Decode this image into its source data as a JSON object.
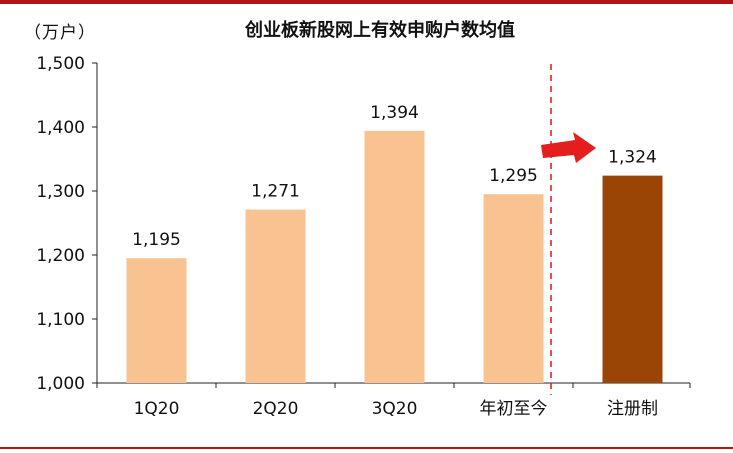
{
  "chart_data": {
    "type": "bar",
    "title": "创业板新股网上有效申购户数均值",
    "unit": "（万户）",
    "categories": [
      "1Q20",
      "2Q20",
      "3Q20",
      "年初至今",
      "注册制"
    ],
    "values": [
      1195,
      1271,
      1394,
      1295,
      1324
    ],
    "value_labels": [
      "1,195",
      "1,271",
      "1,394",
      "1,295",
      "1,324"
    ],
    "ylim": [
      1000,
      1500
    ],
    "yticks": [
      1000,
      1100,
      1200,
      1300,
      1400,
      1500
    ],
    "ytick_labels": [
      "1,000",
      "1,100",
      "1,200",
      "1,300",
      "1,400",
      "1,500"
    ],
    "highlight_index": 4,
    "grid": false,
    "colors": {
      "bar": "#f9c391",
      "highlight_bar": "#9a4405",
      "divider": "#e32420",
      "arrow": "#e41d1d",
      "rule": "#b01515"
    }
  }
}
